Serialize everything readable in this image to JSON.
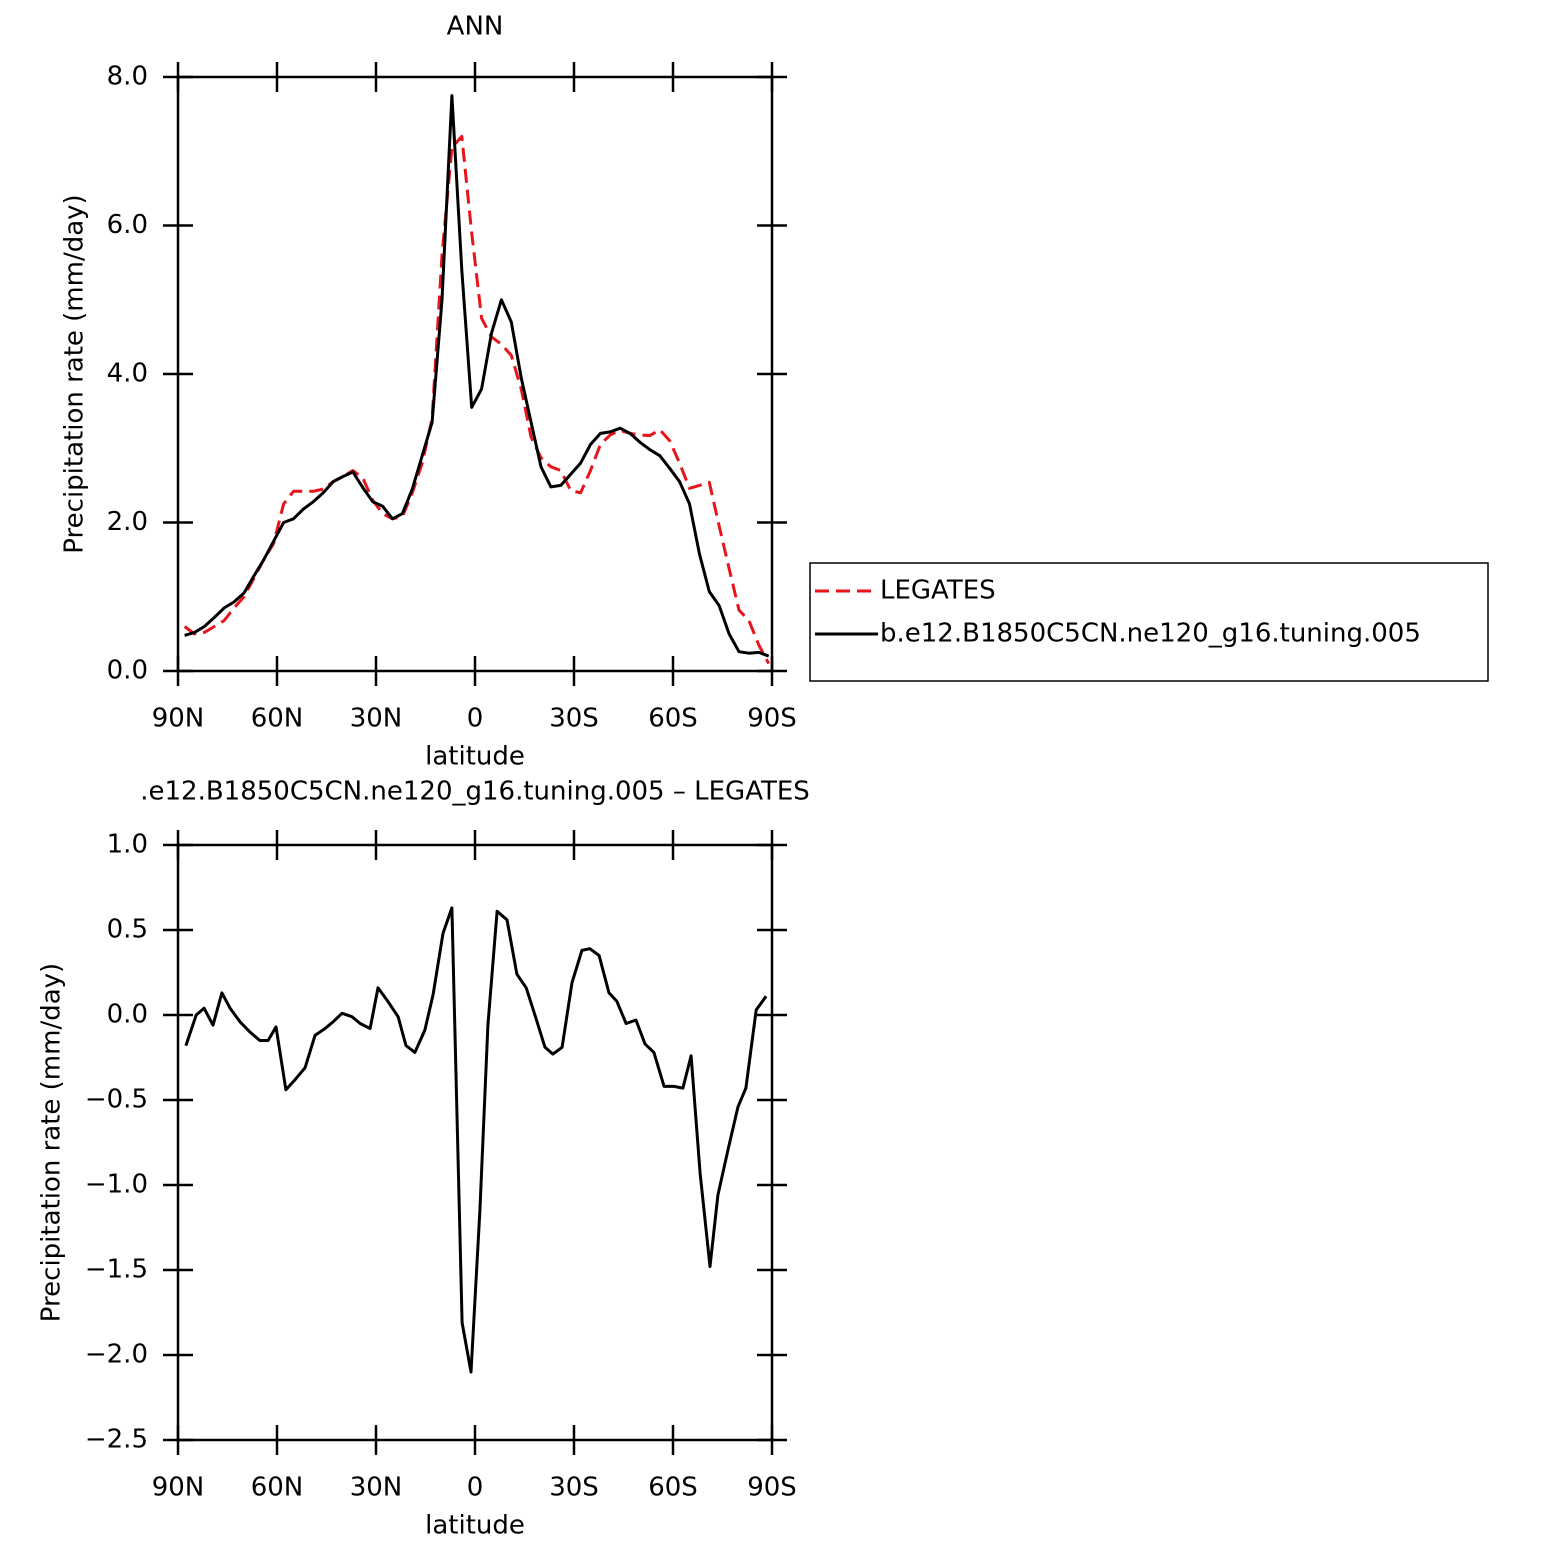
{
  "chart_data": [
    {
      "type": "line",
      "title": "ANN",
      "xlabel": "latitude",
      "ylabel": "Precipitation rate (mm/day)",
      "x": [
        88,
        85,
        82,
        79,
        76,
        73,
        70,
        67,
        64,
        61,
        58,
        55,
        52,
        49,
        46,
        43,
        40,
        37,
        34,
        31,
        28,
        25,
        22,
        19,
        16,
        13,
        10,
        7,
        4,
        1,
        -2,
        -5,
        -8,
        -11,
        -14,
        -17,
        -20,
        -23,
        -26,
        -29,
        -32,
        -35,
        -38,
        -41,
        -44,
        -47,
        -50,
        -53,
        -56,
        -59,
        -62,
        -65,
        -68,
        -71,
        -74,
        -77,
        -80,
        -83,
        -86,
        -89
      ],
      "series": [
        {
          "name": "LEGATES",
          "color": "#e8141b",
          "linestyle": "dashed",
          "values": [
            0.6,
            0.5,
            0.52,
            0.6,
            0.68,
            0.85,
            1.0,
            1.25,
            1.5,
            1.72,
            2.25,
            2.42,
            2.42,
            2.42,
            2.45,
            2.55,
            2.62,
            2.7,
            2.6,
            2.3,
            2.12,
            2.05,
            2.08,
            2.4,
            2.8,
            3.4,
            5.6,
            7.05,
            7.2,
            5.9,
            4.75,
            4.5,
            4.4,
            4.25,
            3.8,
            3.15,
            2.87,
            2.75,
            2.7,
            2.43,
            2.4,
            2.7,
            3.05,
            3.18,
            3.24,
            3.2,
            3.18,
            3.17,
            3.25,
            3.1,
            2.8,
            2.46,
            2.5,
            2.54,
            1.95,
            1.38,
            0.82,
            0.68,
            0.35,
            0.1
          ]
        },
        {
          "name": "b.e12.B1850C5CN.ne120_g16.tuning.005",
          "color": "#000000",
          "linestyle": "solid",
          "values": [
            0.48,
            0.52,
            0.6,
            0.72,
            0.85,
            0.93,
            1.05,
            1.28,
            1.5,
            1.75,
            2.0,
            2.05,
            2.18,
            2.28,
            2.4,
            2.55,
            2.62,
            2.68,
            2.47,
            2.28,
            2.22,
            2.05,
            2.12,
            2.45,
            2.9,
            3.35,
            5.0,
            7.75,
            5.4,
            3.55,
            3.8,
            4.55,
            5.0,
            4.7,
            3.95,
            3.35,
            2.75,
            2.48,
            2.5,
            2.65,
            2.8,
            3.05,
            3.2,
            3.22,
            3.27,
            3.2,
            3.08,
            2.98,
            2.9,
            2.73,
            2.55,
            2.25,
            1.58,
            1.07,
            0.88,
            0.5,
            0.26,
            0.24,
            0.25,
            0.2
          ]
        }
      ],
      "xlim": [
        90,
        -90
      ],
      "xticks": [
        {
          "value": 90,
          "label": "90N"
        },
        {
          "value": 60,
          "label": "60N"
        },
        {
          "value": 30,
          "label": "30N"
        },
        0,
        {
          "value": -30,
          "label": "30S"
        },
        {
          "value": -60,
          "label": "60S"
        },
        {
          "value": -90,
          "label": "90S"
        }
      ],
      "ylim": [
        0,
        8
      ],
      "yticks": [
        {
          "value": 0,
          "label": "0.0"
        },
        {
          "value": 2,
          "label": "2.0"
        },
        {
          "value": 4,
          "label": "4.0"
        },
        {
          "value": 6,
          "label": "6.0"
        },
        {
          "value": 8,
          "label": "8.0"
        }
      ],
      "legend": "right"
    },
    {
      "type": "line",
      "title": ".e12.B1850C5CN.ne120_g16.tuning.005 – LEGATES",
      "xlabel": "latitude",
      "ylabel": "Precipitation rate (mm/day)",
      "x": [
        87.6,
        84.5,
        82.1,
        79.4,
        76.7,
        74.2,
        71.2,
        68.2,
        65.2,
        62.7,
        60.3,
        57.3,
        54.5,
        51.5,
        48.5,
        45.5,
        43.0,
        40.3,
        37.3,
        34.8,
        31.8,
        29.4,
        26.4,
        23.3,
        20.9,
        18.2,
        15.2,
        12.7,
        9.7,
        7.0,
        3.9,
        1.2,
        -1.5,
        -3.9,
        -6.7,
        -9.7,
        -12.7,
        -15.5,
        -18.5,
        -21.2,
        -23.6,
        -26.4,
        -29.4,
        -32.4,
        -34.8,
        -37.6,
        -40.6,
        -43.0,
        -45.8,
        -48.8,
        -51.5,
        -54.2,
        -57.3,
        -60.3,
        -63.0,
        -65.5,
        -68.2,
        -71.2,
        -73.6,
        -76.7,
        -79.7,
        -82.1,
        -85.2,
        -88.2
      ],
      "series": [
        {
          "name": null,
          "color": "#000000",
          "linestyle": "solid",
          "values": [
            -0.18,
            0,
            0.04,
            -0.06,
            0.13,
            0.04,
            -0.04,
            -0.1,
            -0.15,
            -0.15,
            -0.07,
            -0.44,
            -0.38,
            -0.31,
            -0.12,
            -0.08,
            -0.04,
            0.01,
            -0.01,
            -0.05,
            -0.08,
            0.16,
            0.08,
            -0.01,
            -0.18,
            -0.22,
            -0.09,
            0.12,
            0.48,
            0.63,
            -1.81,
            -2.1,
            -1.15,
            -0.06,
            0.61,
            0.56,
            0.24,
            0.16,
            -0.02,
            -0.19,
            -0.23,
            -0.19,
            0.19,
            0.38,
            0.39,
            0.35,
            0.13,
            0.08,
            -0.05,
            -0.03,
            -0.17,
            -0.22,
            -0.42,
            -0.42,
            -0.43,
            -0.24,
            -0.93,
            -1.48,
            -1.06,
            -0.79,
            -0.54,
            -0.43,
            0.03,
            0.11
          ]
        }
      ],
      "xlim": [
        90,
        -90
      ],
      "xticks": [
        {
          "value": 90,
          "label": "90N"
        },
        {
          "value": 60,
          "label": "60N"
        },
        {
          "value": 30,
          "label": "30N"
        },
        0,
        {
          "value": -30,
          "label": "30S"
        },
        {
          "value": -60,
          "label": "60S"
        },
        {
          "value": -90,
          "label": "90S"
        }
      ],
      "ylim": [
        -2.5,
        1
      ],
      "yticks": [
        {
          "value": -2.5,
          "label": "−2.5"
        },
        {
          "value": -2,
          "label": "−2.0"
        },
        {
          "value": -1.5,
          "label": "−1.5"
        },
        {
          "value": -1,
          "label": "−1.0"
        },
        {
          "value": -0.5,
          "label": "−0.5"
        },
        {
          "value": 0,
          "label": "0.0"
        },
        {
          "value": 0.5,
          "label": "0.5"
        },
        {
          "value": 1,
          "label": "1.0"
        }
      ]
    }
  ]
}
